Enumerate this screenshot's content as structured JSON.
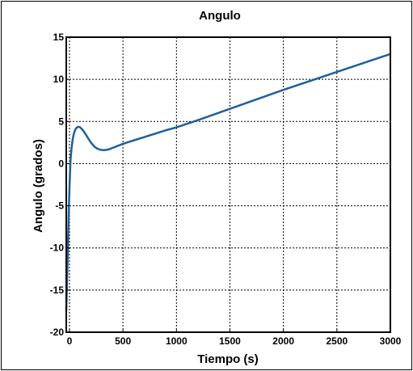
{
  "chart_data": {
    "type": "line",
    "title": "Angulo",
    "xlabel": "Tiempo (s)",
    "ylabel": "Angulo (grados)",
    "xlim": [
      -30,
      3000
    ],
    "ylim": [
      -20,
      15
    ],
    "xticks": [
      0,
      500,
      1000,
      1500,
      2000,
      2500,
      3000
    ],
    "xtick_labels": [
      "0",
      "500",
      "1000",
      "1500",
      "2000",
      "2500",
      "3000"
    ],
    "yticks": [
      -20,
      -15,
      -10,
      -5,
      0,
      5,
      10,
      15
    ],
    "ytick_labels": [
      "-20",
      "-15",
      "-10",
      "-5",
      "0",
      "5",
      "10",
      "15"
    ],
    "grid": true,
    "grid_style": "dotted",
    "line_color": "#1f5f9a",
    "series": [
      {
        "x": [
          -30,
          -25,
          -20,
          -15,
          -10,
          -5,
          0,
          10,
          20,
          30,
          40,
          50,
          60,
          70,
          80,
          90,
          100,
          120,
          140,
          160,
          180,
          200,
          220,
          240,
          260,
          280,
          300,
          320,
          340,
          360,
          380,
          400,
          430,
          460,
          500,
          550,
          600,
          700,
          800,
          900,
          1000,
          1200,
          1400,
          1600,
          1800,
          2000,
          2200,
          2400,
          2600,
          2800,
          3000
        ],
        "y": [
          -17.5,
          -15.0,
          -12.5,
          -10.0,
          -7.5,
          -5.0,
          -2.8,
          0.5,
          1.9,
          2.9,
          3.5,
          3.9,
          4.15,
          4.3,
          4.35,
          4.35,
          4.3,
          4.05,
          3.7,
          3.3,
          2.9,
          2.5,
          2.2,
          1.95,
          1.78,
          1.68,
          1.62,
          1.6,
          1.62,
          1.67,
          1.75,
          1.85,
          2.0,
          2.15,
          2.35,
          2.55,
          2.75,
          3.15,
          3.55,
          3.95,
          4.3,
          5.15,
          6.05,
          6.95,
          7.85,
          8.75,
          9.6,
          10.45,
          11.3,
          12.15,
          13.0
        ]
      }
    ]
  }
}
